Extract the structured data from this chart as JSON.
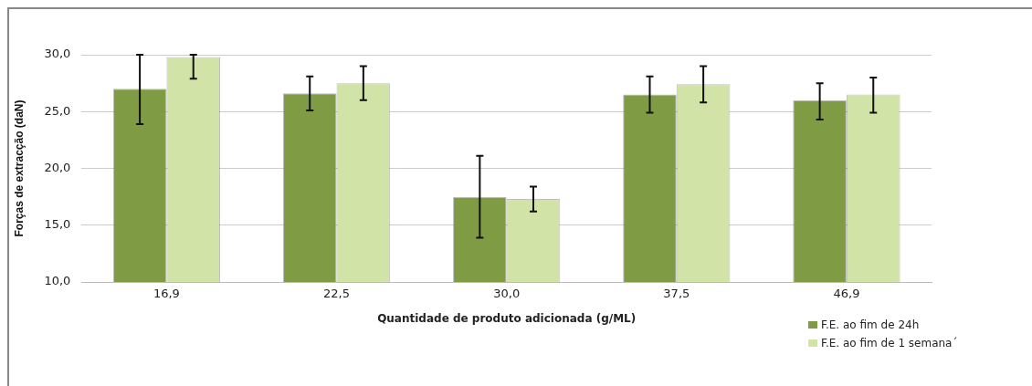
{
  "chart_data": {
    "type": "bar",
    "xlabel": "Quantidade de produto adicionada (g/ML)",
    "ylabel": "Forças de extracção (daN)",
    "categories": [
      "16,9",
      "22,5",
      "30,0",
      "37,5",
      "46,9"
    ],
    "series": [
      {
        "name": "F.E. ao fim de 24h",
        "color": "#7f9c45",
        "values": [
          27.0,
          26.6,
          17.5,
          26.5,
          26.0
        ],
        "errors": [
          [
            23.9,
            30.0
          ],
          [
            25.1,
            28.1
          ],
          [
            13.9,
            21.1
          ],
          [
            24.9,
            28.1
          ],
          [
            24.3,
            27.5
          ]
        ]
      },
      {
        "name": "F.E. ao fim de 1 semana´",
        "color": "#d1e3a7",
        "values": [
          29.8,
          27.5,
          17.3,
          27.4,
          26.5
        ],
        "errors": [
          [
            27.9,
            30.0
          ],
          [
            26.0,
            29.0
          ],
          [
            16.2,
            18.4
          ],
          [
            25.8,
            29.0
          ],
          [
            24.9,
            28.0
          ]
        ]
      }
    ],
    "ylim": [
      10,
      30
    ],
    "yticks": [
      {
        "value": 10,
        "label": "10,0"
      },
      {
        "value": 15,
        "label": "15,0"
      },
      {
        "value": 20,
        "label": "20,0"
      },
      {
        "value": 25,
        "label": "25,0"
      },
      {
        "value": 30,
        "label": "30,0"
      }
    ],
    "grid": "y",
    "legend": "bottom right"
  }
}
